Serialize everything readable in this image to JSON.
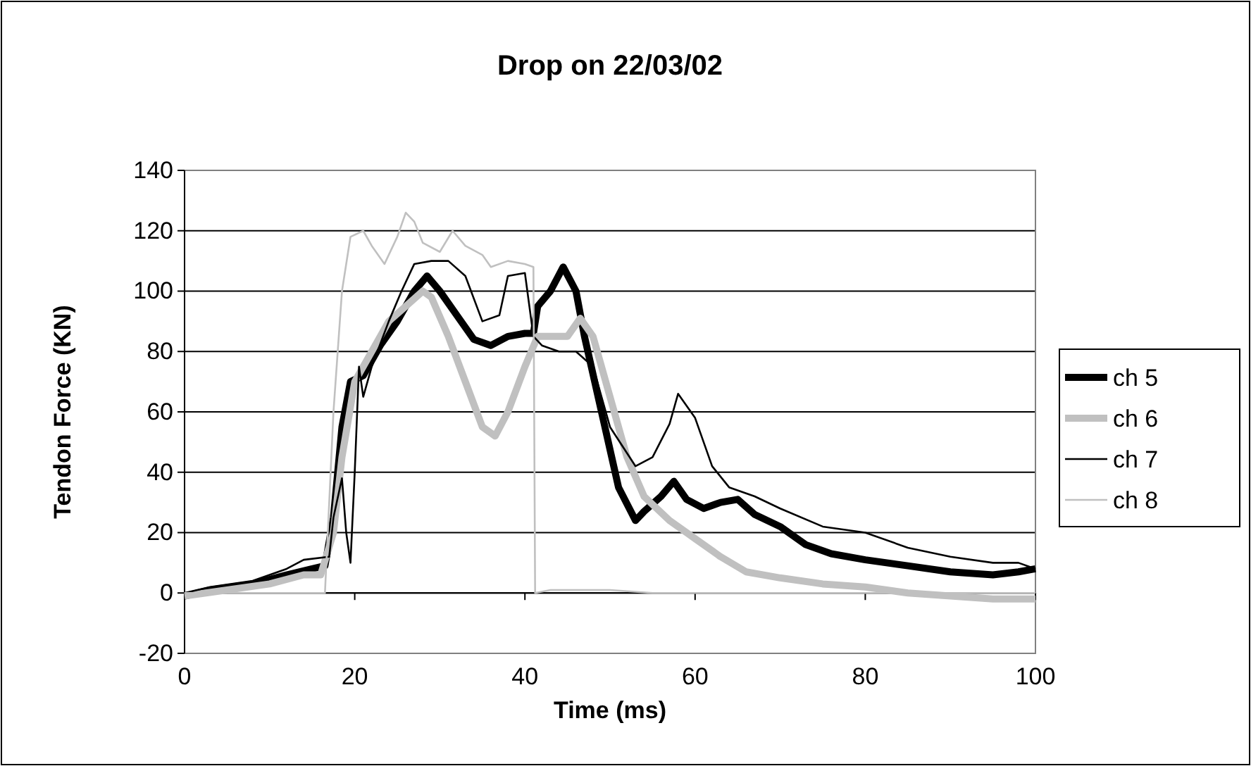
{
  "chart_data": {
    "type": "line",
    "title": "Drop on 22/03/02",
    "xlabel": "Time (ms)",
    "ylabel": "Tendon Force (KN)",
    "xlim": [
      0,
      100
    ],
    "xticks": [
      0,
      20,
      40,
      60,
      80,
      100
    ],
    "ylim": [
      -20,
      140
    ],
    "yticks": [
      -20,
      0,
      20,
      40,
      60,
      80,
      100,
      120,
      140
    ],
    "grid": "y",
    "legend": "right",
    "marker": "none",
    "line_style": "solid",
    "series": [
      {
        "name": "ch 5",
        "color": "#000000",
        "x": [
          0,
          3,
          8,
          12,
          15,
          16.5,
          17.5,
          18.5,
          19.5,
          21,
          23,
          25,
          27,
          28.5,
          30,
          32,
          34,
          36,
          38,
          40,
          41,
          41.5,
          43,
          44.5,
          46,
          47,
          49,
          51,
          53,
          54,
          56,
          57.5,
          59,
          61,
          63,
          65,
          67,
          70,
          73,
          76,
          80,
          85,
          90,
          95,
          98,
          100
        ],
        "values": [
          -1,
          1,
          3,
          6,
          8,
          9,
          25,
          55,
          70,
          72,
          82,
          90,
          100,
          105,
          100,
          92,
          84,
          82,
          85,
          86,
          86,
          95,
          100,
          108,
          100,
          85,
          60,
          35,
          24,
          27,
          32,
          37,
          31,
          28,
          30,
          31,
          26,
          22,
          16,
          13,
          11,
          9,
          7,
          6,
          7,
          8
        ]
      },
      {
        "name": "ch 6",
        "color": "#c0c0c0",
        "x": [
          0,
          5,
          10,
          14,
          16,
          17.5,
          18.5,
          20,
          22,
          24,
          26,
          28,
          29,
          31,
          33,
          35,
          36.5,
          38,
          40,
          41.5,
          43,
          45,
          46.5,
          48,
          50,
          52,
          54,
          57,
          60,
          63,
          66,
          70,
          75,
          80,
          85,
          90,
          95,
          100
        ],
        "values": [
          -1,
          1,
          3,
          6,
          6,
          20,
          45,
          70,
          80,
          90,
          95,
          100,
          98,
          85,
          70,
          55,
          52,
          60,
          75,
          85,
          85,
          85,
          91,
          85,
          65,
          45,
          32,
          24,
          18,
          12,
          7,
          5,
          3,
          2,
          0,
          -1,
          -2,
          -2
        ]
      },
      {
        "name": "ch 7",
        "color": "#000000",
        "x": [
          0,
          3,
          8,
          12,
          14,
          17,
          17.5,
          18.5,
          19,
          19.5,
          20,
          20.5,
          21,
          22,
          24,
          25.5,
          27,
          29,
          31,
          33,
          35,
          37,
          38,
          40,
          41,
          42,
          44,
          46,
          48,
          50,
          53,
          55,
          57,
          58,
          60,
          62,
          64,
          67,
          70,
          75,
          80,
          85,
          90,
          95,
          98,
          100
        ],
        "values": [
          0,
          2,
          4,
          8,
          11,
          12,
          25,
          38,
          20,
          10,
          40,
          75,
          65,
          75,
          90,
          100,
          109,
          110,
          110,
          105,
          90,
          92,
          105,
          106,
          85,
          82,
          80,
          80,
          75,
          55,
          42,
          45,
          56,
          66,
          58,
          42,
          35,
          32,
          28,
          22,
          20,
          15,
          12,
          10,
          10,
          8
        ]
      },
      {
        "name": "ch 8",
        "color": "#c0c0c0",
        "x": [
          0,
          10,
          16.5,
          17.5,
          18.5,
          19.5,
          21,
          22,
          23.5,
          25,
          26,
          27,
          28,
          30,
          31.5,
          33,
          35,
          36,
          38,
          40,
          41,
          41.2,
          43,
          50,
          55,
          70,
          85,
          100
        ],
        "values": [
          0,
          0,
          0,
          60,
          100,
          118,
          120,
          115,
          109,
          118,
          126,
          123,
          116,
          113,
          120,
          115,
          112,
          108,
          110,
          109,
          108,
          0,
          1,
          1,
          0,
          0,
          0,
          0
        ]
      }
    ]
  }
}
